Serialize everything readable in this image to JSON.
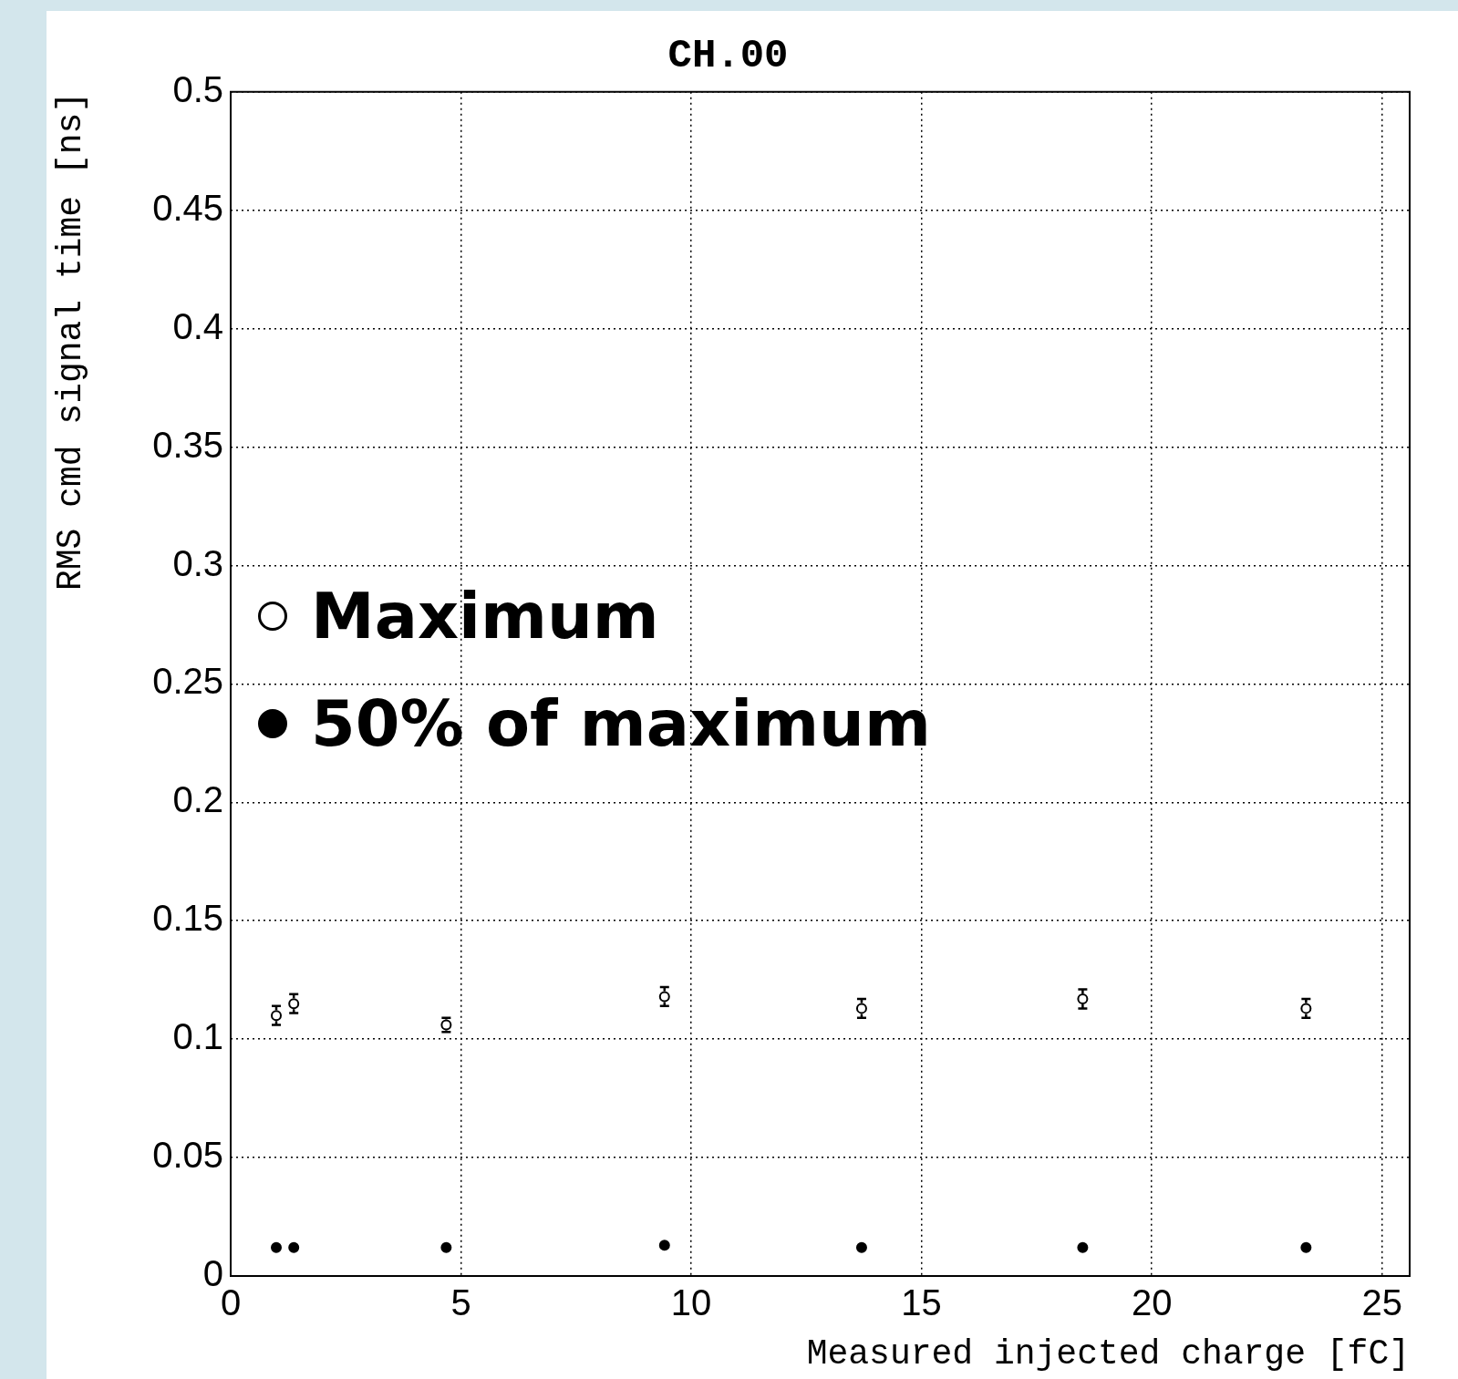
{
  "chart_data": {
    "type": "scatter",
    "title": "CH.00",
    "xlabel": "Measured injected charge [fC]",
    "ylabel": "RMS cmd signal time [ns]",
    "x": [
      0.99,
      1.37,
      4.68,
      9.42,
      13.7,
      18.5,
      23.35
    ],
    "series": [
      {
        "name": "Maximum",
        "color": "#000000",
        "values": [
          0.11,
          0.115,
          0.106,
          0.118,
          0.113,
          0.117,
          0.113
        ],
        "errors": [
          0.004,
          0.004,
          0.003,
          0.004,
          0.004,
          0.004,
          0.004
        ]
      },
      {
        "name": "50% of maximum",
        "color": "#000000",
        "values": [
          0.012,
          0.012,
          0.012,
          0.013,
          0.012,
          0.012,
          0.012
        ]
      }
    ],
    "xlim": [
      0,
      25.6
    ],
    "xticks": [
      0,
      5,
      10,
      15,
      20,
      25
    ],
    "ylim": [
      0,
      0.5
    ],
    "yticks": [
      0,
      0.05,
      0.1,
      0.15,
      0.2,
      0.25,
      0.3,
      0.35,
      0.4,
      0.45,
      0.5
    ],
    "grid": true,
    "legend": "left",
    "marker": "circle"
  }
}
